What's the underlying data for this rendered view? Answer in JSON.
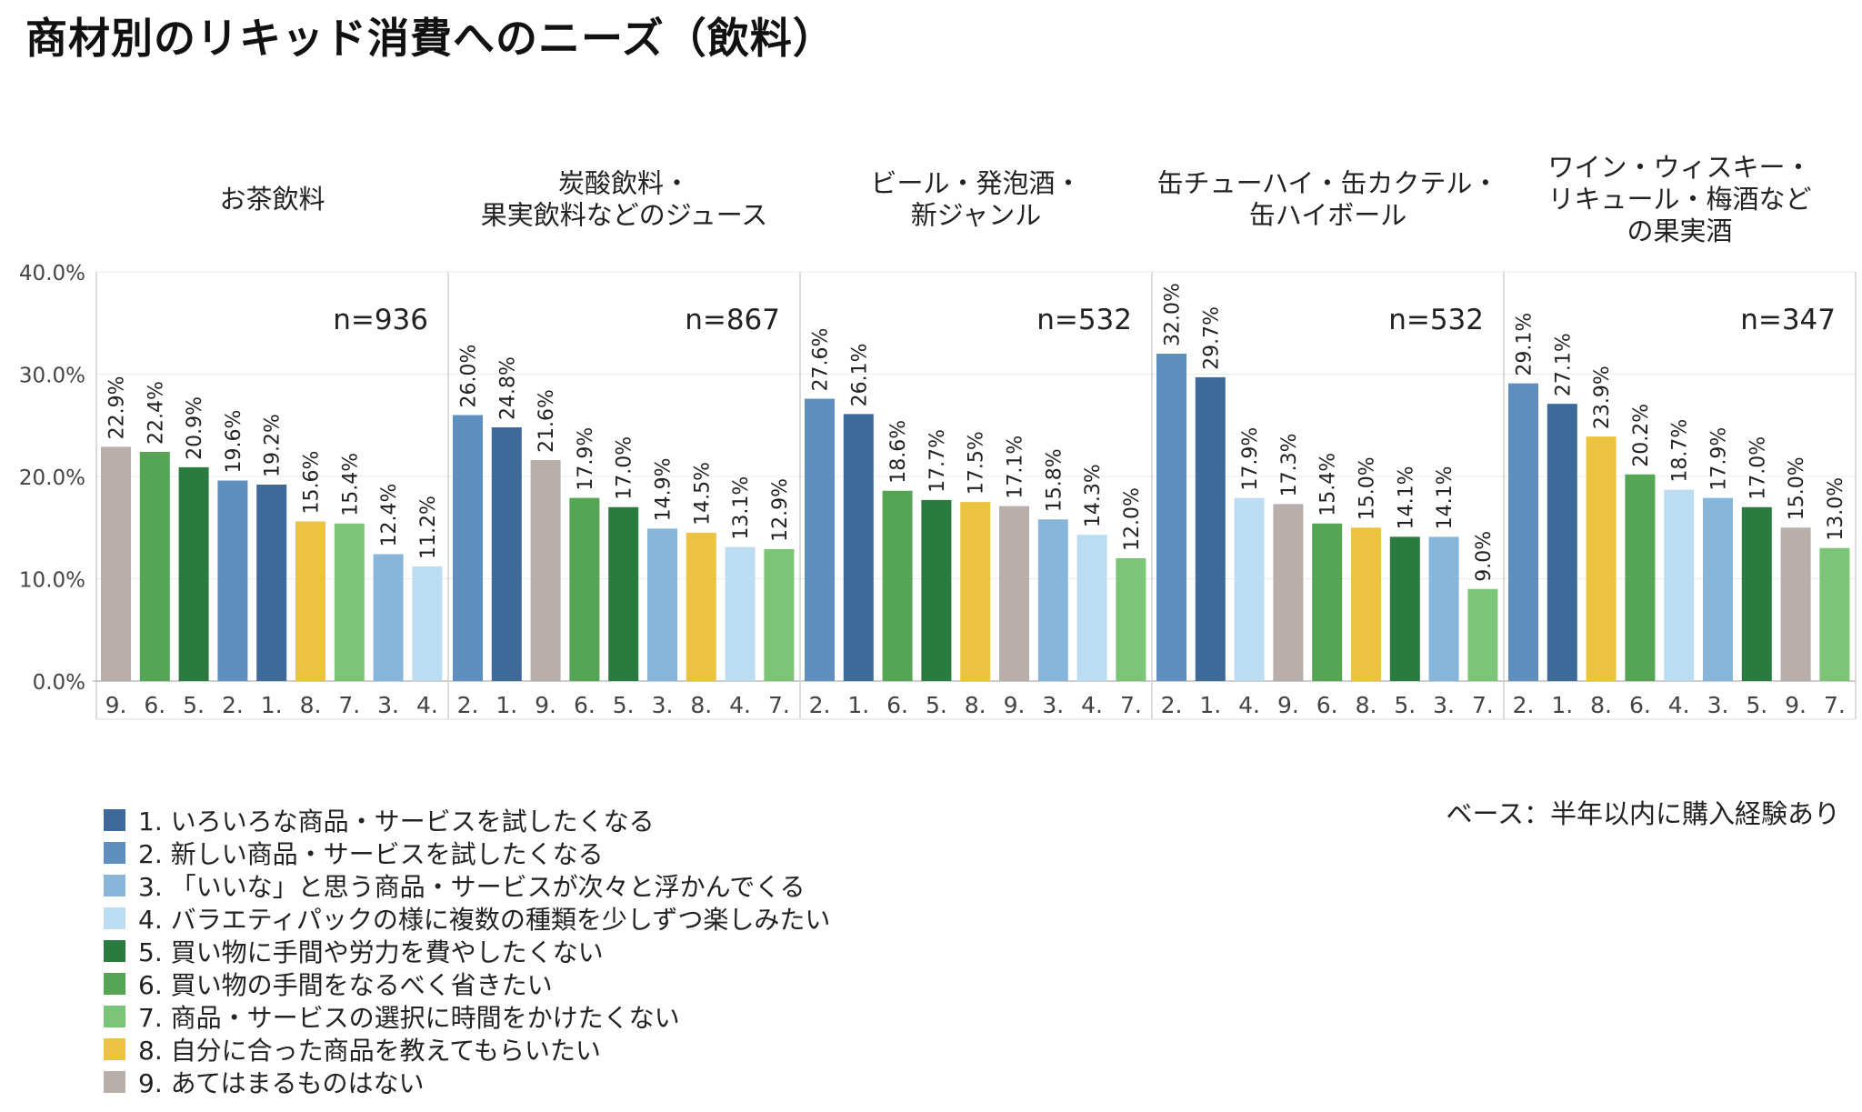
{
  "title": "商材別のリキッド消費へのニーズ（飲料）",
  "base_note": "ベース：半年以内に購入経験あり",
  "colors": {
    "1": "#3E6A9A",
    "2": "#5E8FBE",
    "3": "#88B5DA",
    "4": "#BCDDF1",
    "5": "#2A7B3F",
    "6": "#55A554",
    "7": "#7DC576",
    "8": "#EBC340",
    "9": "#B8AFAA"
  },
  "legend": [
    {
      "key": "1",
      "label": "1. いろいろな商品・サービスを試したくなる"
    },
    {
      "key": "2",
      "label": "2. 新しい商品・サービスを試したくなる"
    },
    {
      "key": "3",
      "label": "3. 「いいな」と思う商品・サービスが次々と浮かんでくる"
    },
    {
      "key": "4",
      "label": "4. バラエティパックの様に複数の種類を少しずつ楽しみたい"
    },
    {
      "key": "5",
      "label": "5. 買い物に手間や労力を費やしたくない"
    },
    {
      "key": "6",
      "label": "6. 買い物の手間をなるべく省きたい"
    },
    {
      "key": "7",
      "label": "7. 商品・サービスの選択に時間をかけたくない"
    },
    {
      "key": "8",
      "label": "8. 自分に合った商品を教えてもらいたい"
    },
    {
      "key": "9",
      "label": "9. あてはまるものはない"
    }
  ],
  "chart_data": {
    "type": "bar",
    "ylim": [
      0,
      40
    ],
    "yticks": [
      "0.0%",
      "10.0%",
      "20.0%",
      "30.0%",
      "40.0%"
    ],
    "ytick_values": [
      0,
      10,
      20,
      30,
      40
    ],
    "panels": [
      {
        "title_lines": [
          "お茶飲料"
        ],
        "n": "n=936",
        "categories": [
          "9.",
          "6.",
          "5.",
          "2.",
          "1.",
          "8.",
          "7.",
          "3.",
          "4."
        ],
        "keys": [
          "9",
          "6",
          "5",
          "2",
          "1",
          "8",
          "7",
          "3",
          "4"
        ],
        "values": [
          22.9,
          22.4,
          20.9,
          19.6,
          19.2,
          15.6,
          15.4,
          12.4,
          11.2
        ],
        "labels": [
          "22.9%",
          "22.4%",
          "20.9%",
          "19.6%",
          "19.2%",
          "15.6%",
          "15.4%",
          "12.4%",
          "11.2%"
        ]
      },
      {
        "title_lines": [
          "炭酸飲料・",
          "果実飲料などのジュース"
        ],
        "n": "n=867",
        "categories": [
          "2.",
          "1.",
          "9.",
          "6.",
          "5.",
          "3.",
          "8.",
          "4.",
          "7."
        ],
        "keys": [
          "2",
          "1",
          "9",
          "6",
          "5",
          "3",
          "8",
          "4",
          "7"
        ],
        "values": [
          26.0,
          24.8,
          21.6,
          17.9,
          17.0,
          14.9,
          14.5,
          13.1,
          12.9
        ],
        "labels": [
          "26.0%",
          "24.8%",
          "21.6%",
          "17.9%",
          "17.0%",
          "14.9%",
          "14.5%",
          "13.1%",
          "12.9%"
        ]
      },
      {
        "title_lines": [
          "ビール・発泡酒・",
          "新ジャンル"
        ],
        "n": "n=532",
        "categories": [
          "2.",
          "1.",
          "6.",
          "5.",
          "8.",
          "9.",
          "3.",
          "4.",
          "7."
        ],
        "keys": [
          "2",
          "1",
          "6",
          "5",
          "8",
          "9",
          "3",
          "4",
          "7"
        ],
        "values": [
          27.6,
          26.1,
          18.6,
          17.7,
          17.5,
          17.1,
          15.8,
          14.3,
          12.0
        ],
        "labels": [
          "27.6%",
          "26.1%",
          "18.6%",
          "17.7%",
          "17.5%",
          "17.1%",
          "15.8%",
          "14.3%",
          "12.0%"
        ]
      },
      {
        "title_lines": [
          "缶チューハイ・缶カクテル・",
          "缶ハイボール"
        ],
        "n": "n=532",
        "categories": [
          "2.",
          "1.",
          "4.",
          "9.",
          "6.",
          "8.",
          "5.",
          "3.",
          "7."
        ],
        "keys": [
          "2",
          "1",
          "4",
          "9",
          "6",
          "8",
          "5",
          "3",
          "7"
        ],
        "values": [
          32.0,
          29.7,
          17.9,
          17.3,
          15.4,
          15.0,
          14.1,
          14.1,
          9.0
        ],
        "labels": [
          "32.0%",
          "29.7%",
          "17.9%",
          "17.3%",
          "15.4%",
          "15.0%",
          "14.1%",
          "14.1%",
          "9.0%"
        ]
      },
      {
        "title_lines": [
          "ワイン・ウィスキー・",
          "リキュール・梅酒など",
          "の果実酒"
        ],
        "n": "n=347",
        "categories": [
          "2.",
          "1.",
          "8.",
          "6.",
          "4.",
          "3.",
          "5.",
          "9.",
          "7."
        ],
        "keys": [
          "2",
          "1",
          "8",
          "6",
          "4",
          "3",
          "5",
          "9",
          "7"
        ],
        "values": [
          29.1,
          27.1,
          23.9,
          20.2,
          18.7,
          17.9,
          17.0,
          15.0,
          13.0
        ],
        "labels": [
          "29.1%",
          "27.1%",
          "23.9%",
          "20.2%",
          "18.7%",
          "17.9%",
          "17.0%",
          "15.0%",
          "13.0%"
        ]
      }
    ]
  }
}
